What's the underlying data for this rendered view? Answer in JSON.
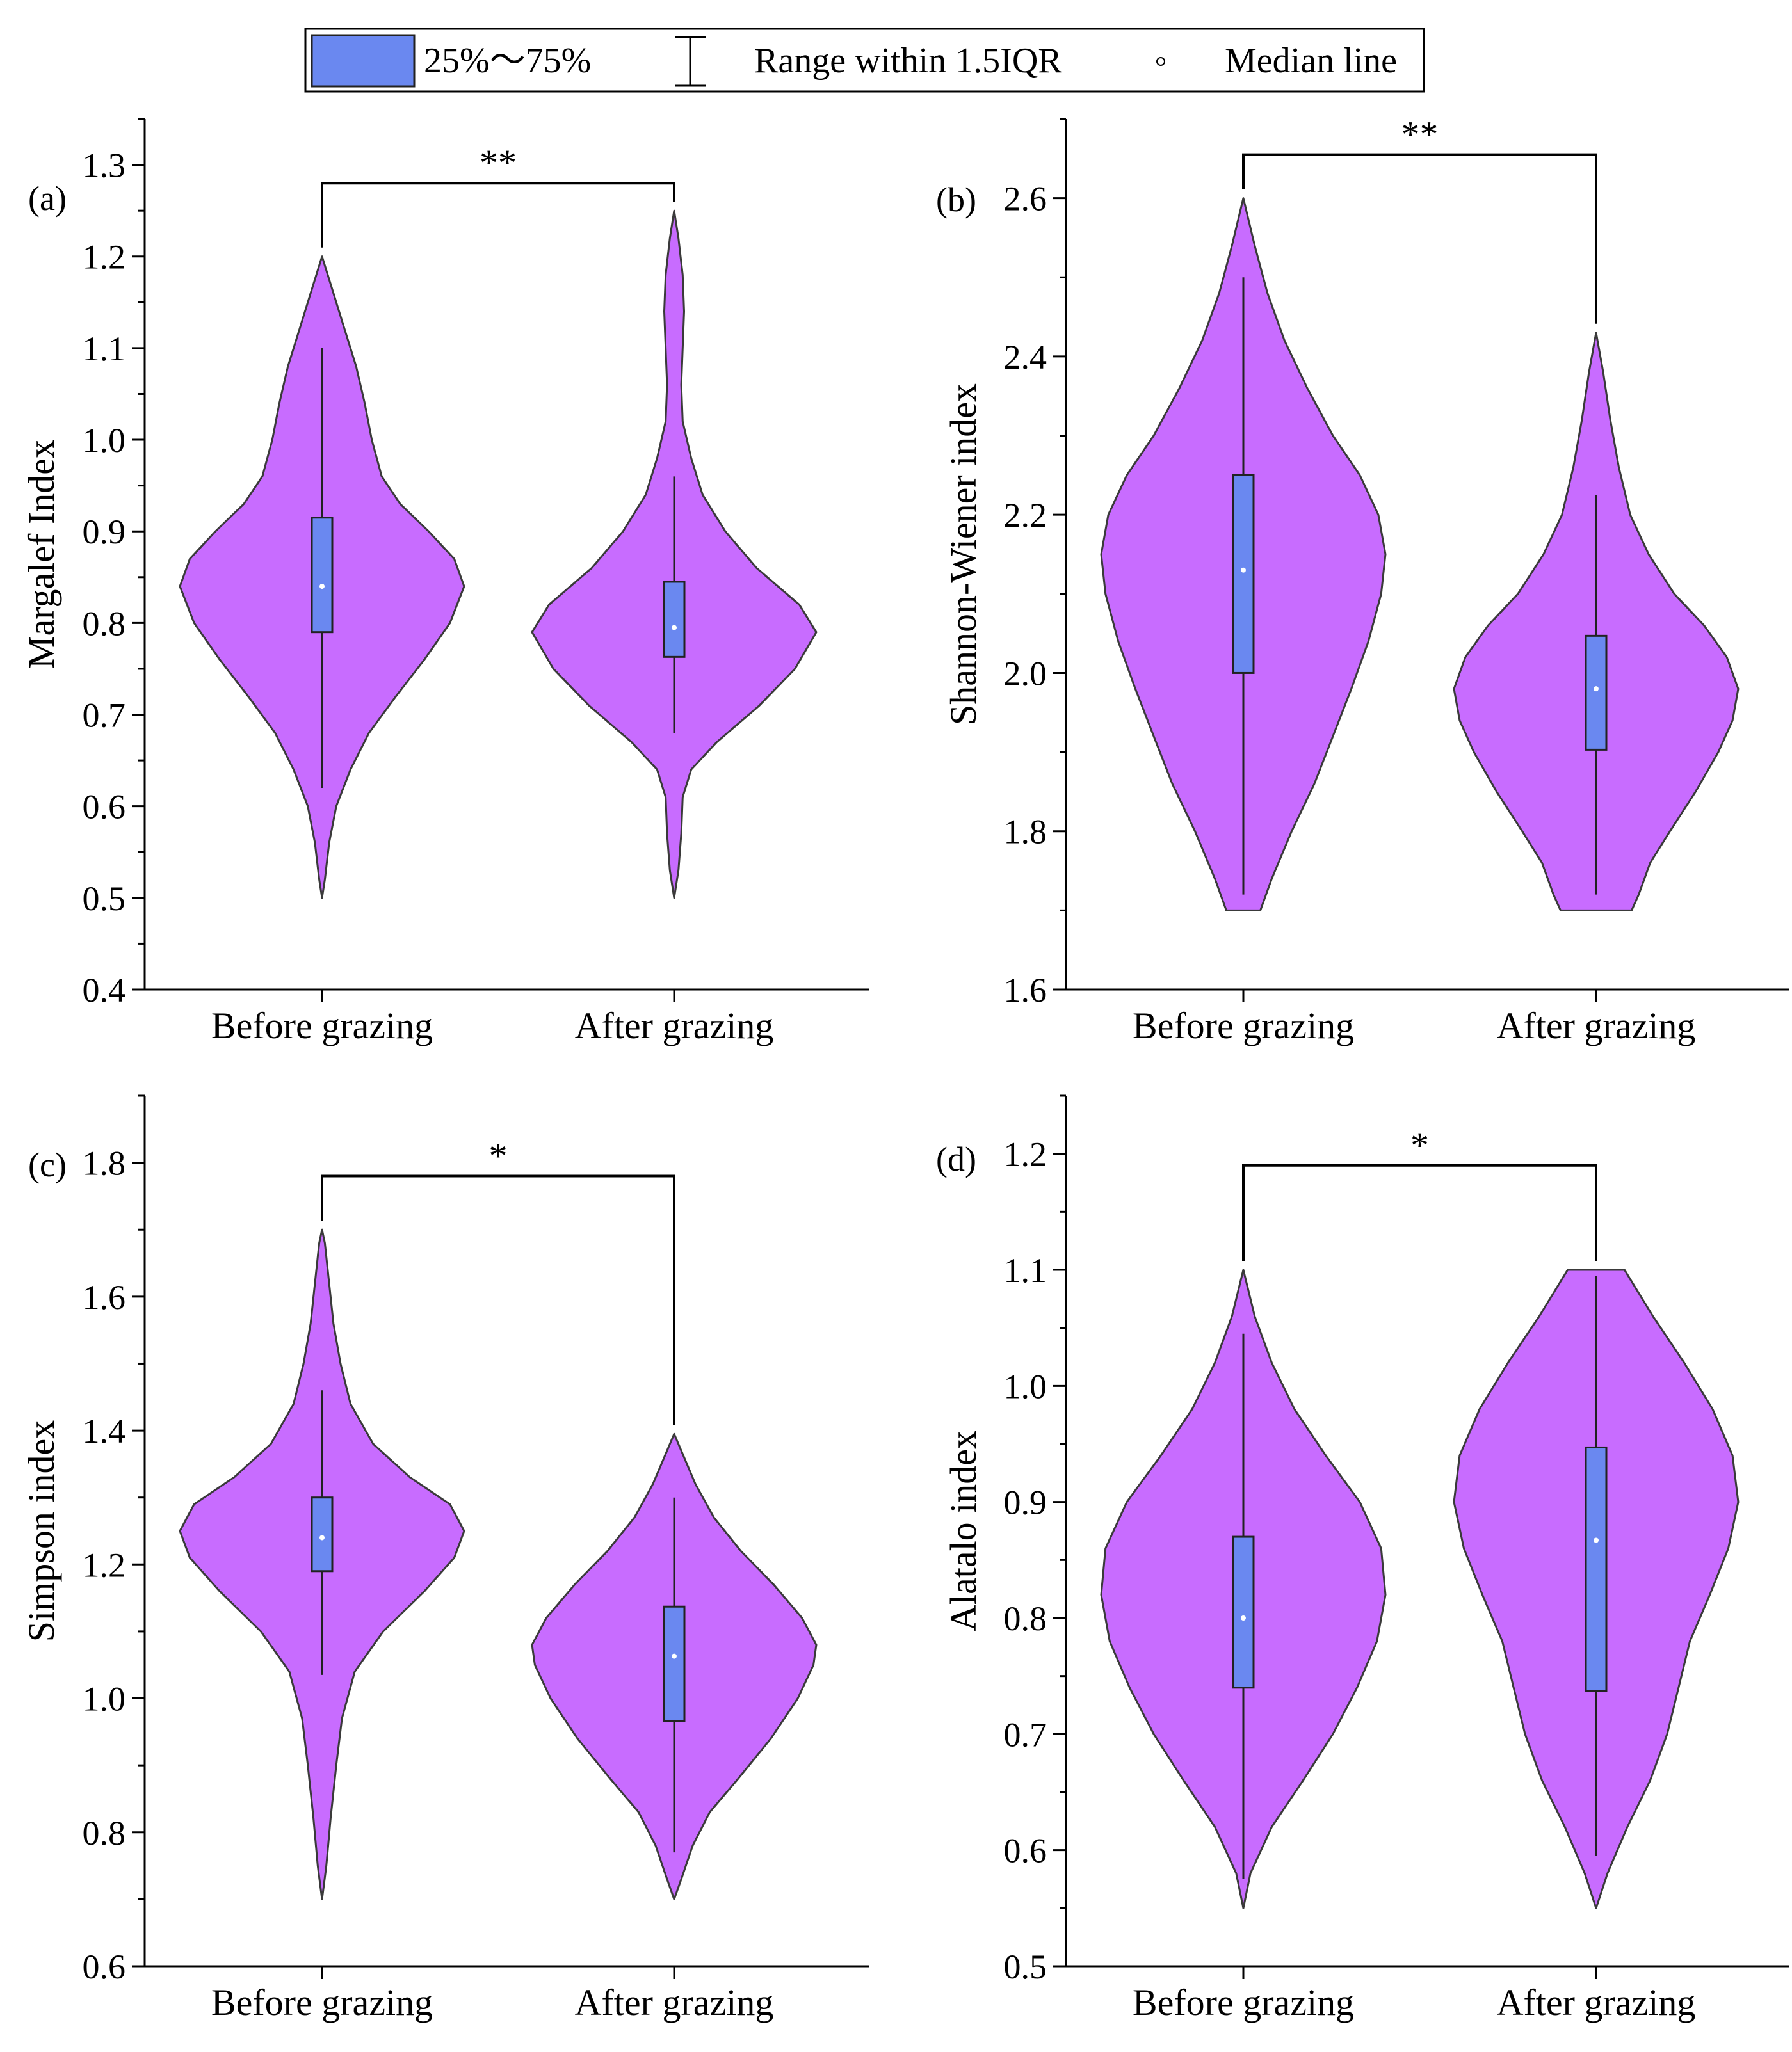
{
  "colors": {
    "violin_fill": "#c86cff",
    "violin_stroke": "#3a3a3a",
    "box_fill": "#6a88f0",
    "box_stroke": "#222222",
    "median_dot": "#ffffff"
  },
  "legend": {
    "box_label": "25%～75%",
    "whisker_label": "Range within 1.5IQR",
    "median_label": "Median line"
  },
  "chart_data": [
    {
      "type": "violin",
      "panel_label": "(a)",
      "ylabel": "Margalef Index",
      "ylim": [
        0.4,
        1.35
      ],
      "yticks": [
        0.4,
        0.5,
        0.6,
        0.7,
        0.8,
        0.9,
        1.0,
        1.1,
        1.2,
        1.3
      ],
      "tick_labels": [
        "0.4",
        "0.5",
        "0.6",
        "0.7",
        "0.8",
        "0.9",
        "1.0",
        "1.1",
        "1.2",
        "1.3"
      ],
      "minor_step": 0.05,
      "categories": [
        "Before grazing",
        "After grazing"
      ],
      "significance": "**",
      "bracket_y": 1.28,
      "groups": [
        {
          "name": "Before grazing",
          "min": 0.5,
          "max": 1.2,
          "q1": 0.79,
          "median": 0.84,
          "q3": 0.915,
          "whisker_low": 0.62,
          "whisker_high": 1.1,
          "density": [
            [
              0.5,
              0.0
            ],
            [
              0.52,
              0.02
            ],
            [
              0.56,
              0.05
            ],
            [
              0.6,
              0.1
            ],
            [
              0.64,
              0.2
            ],
            [
              0.68,
              0.33
            ],
            [
              0.72,
              0.52
            ],
            [
              0.76,
              0.72
            ],
            [
              0.8,
              0.9
            ],
            [
              0.84,
              1.0
            ],
            [
              0.87,
              0.93
            ],
            [
              0.9,
              0.75
            ],
            [
              0.93,
              0.55
            ],
            [
              0.96,
              0.42
            ],
            [
              1.0,
              0.35
            ],
            [
              1.04,
              0.3
            ],
            [
              1.08,
              0.24
            ],
            [
              1.12,
              0.16
            ],
            [
              1.16,
              0.08
            ],
            [
              1.2,
              0.0
            ]
          ]
        },
        {
          "name": "After grazing",
          "min": 0.5,
          "max": 1.25,
          "q1": 0.763,
          "median": 0.795,
          "q3": 0.845,
          "whisker_low": 0.68,
          "whisker_high": 0.96,
          "density": [
            [
              0.5,
              0.0
            ],
            [
              0.53,
              0.03
            ],
            [
              0.57,
              0.05
            ],
            [
              0.61,
              0.06
            ],
            [
              0.64,
              0.12
            ],
            [
              0.67,
              0.3
            ],
            [
              0.71,
              0.6
            ],
            [
              0.75,
              0.85
            ],
            [
              0.79,
              1.0
            ],
            [
              0.82,
              0.88
            ],
            [
              0.86,
              0.58
            ],
            [
              0.9,
              0.36
            ],
            [
              0.94,
              0.2
            ],
            [
              0.98,
              0.12
            ],
            [
              1.02,
              0.06
            ],
            [
              1.06,
              0.05
            ],
            [
              1.1,
              0.06
            ],
            [
              1.14,
              0.07
            ],
            [
              1.18,
              0.06
            ],
            [
              1.22,
              0.03
            ],
            [
              1.25,
              0.0
            ]
          ]
        }
      ]
    },
    {
      "type": "violin",
      "panel_label": "(b)",
      "ylabel": "Shannon-Wiener index",
      "ylim": [
        1.6,
        2.7
      ],
      "yticks": [
        1.6,
        1.8,
        2.0,
        2.2,
        2.4,
        2.6
      ],
      "tick_labels": [
        "1.6",
        "1.8",
        "2.0",
        "2.2",
        "2.4",
        "2.6"
      ],
      "minor_step": 0.1,
      "categories": [
        "Before grazing",
        "After grazing"
      ],
      "significance": "**",
      "bracket_y": 2.655,
      "groups": [
        {
          "name": "Before grazing",
          "min": 1.7,
          "max": 2.6,
          "q1": 2.0,
          "median": 2.13,
          "q3": 2.25,
          "whisker_low": 1.72,
          "whisker_high": 2.5,
          "density": [
            [
              1.7,
              0.12
            ],
            [
              1.74,
              0.2
            ],
            [
              1.8,
              0.34
            ],
            [
              1.86,
              0.5
            ],
            [
              1.92,
              0.63
            ],
            [
              1.98,
              0.76
            ],
            [
              2.04,
              0.88
            ],
            [
              2.1,
              0.97
            ],
            [
              2.15,
              1.0
            ],
            [
              2.2,
              0.95
            ],
            [
              2.25,
              0.82
            ],
            [
              2.3,
              0.63
            ],
            [
              2.36,
              0.45
            ],
            [
              2.42,
              0.29
            ],
            [
              2.48,
              0.17
            ],
            [
              2.54,
              0.08
            ],
            [
              2.6,
              0.0
            ]
          ]
        },
        {
          "name": "After grazing",
          "min": 1.7,
          "max": 2.43,
          "q1": 1.903,
          "median": 1.98,
          "q3": 2.047,
          "whisker_low": 1.72,
          "whisker_high": 2.225,
          "density": [
            [
              1.7,
              0.25
            ],
            [
              1.72,
              0.3
            ],
            [
              1.76,
              0.38
            ],
            [
              1.8,
              0.52
            ],
            [
              1.85,
              0.7
            ],
            [
              1.9,
              0.86
            ],
            [
              1.94,
              0.96
            ],
            [
              1.98,
              1.0
            ],
            [
              2.02,
              0.92
            ],
            [
              2.06,
              0.76
            ],
            [
              2.1,
              0.55
            ],
            [
              2.15,
              0.37
            ],
            [
              2.2,
              0.24
            ],
            [
              2.26,
              0.16
            ],
            [
              2.32,
              0.1
            ],
            [
              2.38,
              0.05
            ],
            [
              2.43,
              0.0
            ]
          ]
        }
      ]
    },
    {
      "type": "violin",
      "panel_label": "(c)",
      "ylabel": "Simpson index",
      "ylim": [
        0.6,
        1.9
      ],
      "yticks": [
        0.6,
        0.8,
        1.0,
        1.2,
        1.4,
        1.6,
        1.8
      ],
      "tick_labels": [
        "0.6",
        "0.8",
        "1.0",
        "1.2",
        "1.4",
        "1.6",
        "1.8"
      ],
      "minor_step": 0.1,
      "categories": [
        "Before grazing",
        "After grazing"
      ],
      "significance": "*",
      "bracket_y": 1.78,
      "groups": [
        {
          "name": "Before grazing",
          "min": 0.7,
          "max": 1.7,
          "q1": 1.19,
          "median": 1.24,
          "q3": 1.3,
          "whisker_low": 1.035,
          "whisker_high": 1.46,
          "density": [
            [
              0.7,
              0.0
            ],
            [
              0.75,
              0.03
            ],
            [
              0.82,
              0.06
            ],
            [
              0.9,
              0.1
            ],
            [
              0.97,
              0.14
            ],
            [
              1.04,
              0.23
            ],
            [
              1.1,
              0.43
            ],
            [
              1.16,
              0.72
            ],
            [
              1.21,
              0.93
            ],
            [
              1.25,
              1.0
            ],
            [
              1.29,
              0.9
            ],
            [
              1.33,
              0.62
            ],
            [
              1.38,
              0.36
            ],
            [
              1.44,
              0.2
            ],
            [
              1.5,
              0.13
            ],
            [
              1.56,
              0.08
            ],
            [
              1.62,
              0.05
            ],
            [
              1.68,
              0.02
            ],
            [
              1.7,
              0.0
            ]
          ]
        },
        {
          "name": "After grazing",
          "min": 0.7,
          "max": 1.395,
          "q1": 0.966,
          "median": 1.063,
          "q3": 1.137,
          "whisker_low": 0.77,
          "whisker_high": 1.3,
          "density": [
            [
              0.7,
              0.0
            ],
            [
              0.73,
              0.05
            ],
            [
              0.78,
              0.13
            ],
            [
              0.83,
              0.25
            ],
            [
              0.88,
              0.45
            ],
            [
              0.94,
              0.68
            ],
            [
              1.0,
              0.87
            ],
            [
              1.05,
              0.98
            ],
            [
              1.08,
              1.0
            ],
            [
              1.12,
              0.9
            ],
            [
              1.17,
              0.7
            ],
            [
              1.22,
              0.47
            ],
            [
              1.27,
              0.28
            ],
            [
              1.32,
              0.15
            ],
            [
              1.37,
              0.05
            ],
            [
              1.395,
              0.0
            ]
          ]
        }
      ]
    },
    {
      "type": "violin",
      "panel_label": "(d)",
      "ylabel": "Alatalo index",
      "ylim": [
        0.5,
        1.25
      ],
      "yticks": [
        0.5,
        0.6,
        0.7,
        0.8,
        0.9,
        1.0,
        1.1,
        1.2
      ],
      "tick_labels": [
        "0.5",
        "0.6",
        "0.7",
        "0.8",
        "0.9",
        "1.0",
        "1.1",
        "1.2"
      ],
      "minor_step": 0.05,
      "categories": [
        "Before grazing",
        "After grazing"
      ],
      "significance": "*",
      "bracket_y": 1.19,
      "groups": [
        {
          "name": "Before grazing",
          "min": 0.55,
          "max": 1.1,
          "q1": 0.74,
          "median": 0.8,
          "q3": 0.87,
          "whisker_low": 0.575,
          "whisker_high": 1.045,
          "density": [
            [
              0.55,
              0.0
            ],
            [
              0.58,
              0.05
            ],
            [
              0.62,
              0.2
            ],
            [
              0.66,
              0.42
            ],
            [
              0.7,
              0.63
            ],
            [
              0.74,
              0.8
            ],
            [
              0.78,
              0.94
            ],
            [
              0.82,
              1.0
            ],
            [
              0.86,
              0.97
            ],
            [
              0.9,
              0.82
            ],
            [
              0.94,
              0.58
            ],
            [
              0.98,
              0.36
            ],
            [
              1.02,
              0.2
            ],
            [
              1.06,
              0.08
            ],
            [
              1.1,
              0.0
            ]
          ]
        },
        {
          "name": "After grazing",
          "min": 0.55,
          "max": 1.1,
          "q1": 0.737,
          "median": 0.867,
          "q3": 0.947,
          "whisker_low": 0.595,
          "whisker_high": 1.095,
          "density": [
            [
              0.55,
              0.0
            ],
            [
              0.58,
              0.08
            ],
            [
              0.62,
              0.22
            ],
            [
              0.66,
              0.38
            ],
            [
              0.7,
              0.5
            ],
            [
              0.74,
              0.58
            ],
            [
              0.78,
              0.66
            ],
            [
              0.82,
              0.8
            ],
            [
              0.86,
              0.93
            ],
            [
              0.9,
              1.0
            ],
            [
              0.94,
              0.96
            ],
            [
              0.98,
              0.82
            ],
            [
              1.02,
              0.62
            ],
            [
              1.06,
              0.4
            ],
            [
              1.1,
              0.2
            ]
          ]
        }
      ]
    }
  ]
}
